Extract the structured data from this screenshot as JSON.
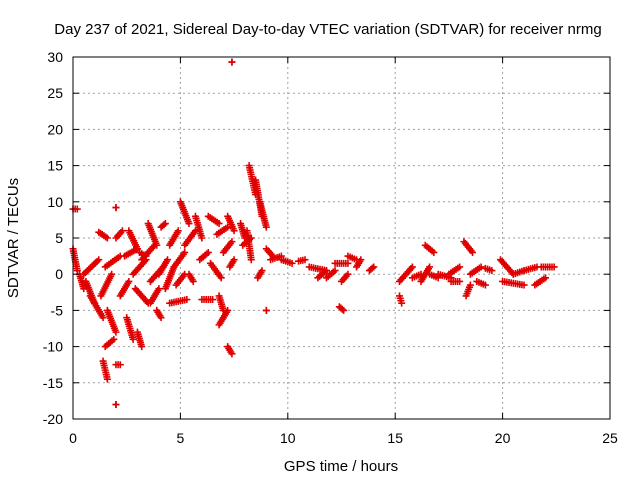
{
  "chart_data": {
    "type": "scatter",
    "title": "Day 237 of 2021, Sidereal Day-to-day VTEC variation (SDTVAR) for receiver nrmg",
    "xlabel": "GPS time / hours",
    "ylabel": "SDTVAR / TECUs",
    "xlim": [
      0,
      25
    ],
    "ylim": [
      -20,
      30
    ],
    "xticks": [
      "0",
      "5",
      "10",
      "15",
      "20",
      "25"
    ],
    "yticks": [
      "-20",
      "-15",
      "-10",
      "-5",
      "0",
      "5",
      "10",
      "15",
      "20",
      "25",
      "30"
    ],
    "grid": true,
    "marker": "+",
    "color": "#e00000",
    "segments": [
      [
        0.0,
        9.0,
        0.2,
        9.0
      ],
      [
        0.0,
        3.5,
        0.2,
        0.5
      ],
      [
        0.3,
        0.0,
        0.5,
        -2.0
      ],
      [
        0.5,
        0.0,
        1.2,
        2.0
      ],
      [
        0.6,
        -1.0,
        1.0,
        -4.0
      ],
      [
        0.8,
        -3.0,
        1.4,
        -6.0
      ],
      [
        1.2,
        5.8,
        1.6,
        5.0
      ],
      [
        1.3,
        -3.0,
        1.8,
        0.0
      ],
      [
        1.4,
        -12.0,
        1.6,
        -14.5
      ],
      [
        1.5,
        -10.0,
        1.9,
        -9.0
      ],
      [
        1.5,
        1.0,
        2.2,
        2.5
      ],
      [
        1.6,
        -5.0,
        2.0,
        -8.0
      ],
      [
        2.0,
        9.2,
        2.0,
        9.2
      ],
      [
        2.0,
        5.0,
        2.3,
        6.0
      ],
      [
        2.0,
        -12.5,
        2.2,
        -12.5
      ],
      [
        2.0,
        -18.0,
        2.0,
        -18.0
      ],
      [
        2.2,
        -3.0,
        2.6,
        -1.0
      ],
      [
        2.4,
        2.5,
        3.0,
        3.5
      ],
      [
        2.5,
        -6.0,
        2.8,
        -9.0
      ],
      [
        2.6,
        6.0,
        3.0,
        3.5
      ],
      [
        2.8,
        0.0,
        3.4,
        2.0
      ],
      [
        2.9,
        -2.0,
        3.5,
        -4.0
      ],
      [
        3.0,
        -8.0,
        3.2,
        -10.0
      ],
      [
        3.1,
        3.0,
        3.4,
        2.5
      ],
      [
        3.2,
        2.0,
        3.8,
        4.0
      ],
      [
        3.5,
        7.0,
        3.9,
        4.0
      ],
      [
        3.6,
        -1.0,
        4.2,
        1.0
      ],
      [
        3.6,
        -4.0,
        4.0,
        -2.0
      ],
      [
        3.9,
        -5.0,
        4.1,
        -6.0
      ],
      [
        4.0,
        0.0,
        4.4,
        2.0
      ],
      [
        4.1,
        6.5,
        4.3,
        7.0
      ],
      [
        4.3,
        -2.0,
        4.7,
        1.0
      ],
      [
        4.5,
        4.0,
        4.9,
        6.0
      ],
      [
        4.5,
        -4.0,
        5.3,
        -3.5
      ],
      [
        4.7,
        1.0,
        5.2,
        3.0
      ],
      [
        4.8,
        -1.5,
        5.2,
        0.0
      ],
      [
        5.0,
        10.0,
        5.4,
        7.0
      ],
      [
        5.2,
        4.0,
        5.7,
        6.0
      ],
      [
        5.4,
        0.0,
        5.6,
        -1.0
      ],
      [
        5.7,
        8.0,
        6.0,
        5.0
      ],
      [
        5.9,
        2.0,
        6.3,
        3.0
      ],
      [
        6.0,
        -3.5,
        6.5,
        -3.5
      ],
      [
        6.3,
        8.0,
        6.8,
        7.0
      ],
      [
        6.4,
        1.5,
        6.9,
        -0.5
      ],
      [
        6.7,
        5.5,
        7.2,
        6.5
      ],
      [
        6.8,
        -3.0,
        7.0,
        -5.0
      ],
      [
        6.8,
        -7.0,
        7.2,
        -5.0
      ],
      [
        7.0,
        3.0,
        7.4,
        4.5
      ],
      [
        7.2,
        8.0,
        7.5,
        6.0
      ],
      [
        7.2,
        -10.0,
        7.4,
        -11.0
      ],
      [
        7.3,
        1.0,
        7.5,
        2.0
      ],
      [
        7.4,
        29.3,
        7.4,
        29.3
      ],
      [
        7.8,
        7.0,
        8.0,
        5.0
      ],
      [
        7.9,
        4.0,
        8.3,
        5.0
      ],
      [
        8.1,
        6.0,
        8.3,
        2.0
      ],
      [
        8.2,
        15.0,
        8.5,
        11.0
      ],
      [
        8.5,
        13.0,
        8.8,
        8.0
      ],
      [
        8.7,
        10.0,
        9.0,
        6.5
      ],
      [
        8.6,
        -0.5,
        8.8,
        0.5
      ],
      [
        9.0,
        -5.0,
        9.0,
        -5.0
      ],
      [
        9.0,
        3.5,
        9.3,
        2.5
      ],
      [
        9.2,
        2.0,
        9.7,
        2.5
      ],
      [
        9.7,
        2.0,
        10.2,
        1.5
      ],
      [
        10.5,
        1.8,
        10.8,
        2.0
      ],
      [
        11.0,
        1.0,
        11.8,
        0.5
      ],
      [
        11.4,
        -0.5,
        11.8,
        0.5
      ],
      [
        11.8,
        -0.5,
        12.2,
        0.5
      ],
      [
        12.2,
        1.5,
        12.8,
        1.5
      ],
      [
        12.4,
        -4.5,
        12.6,
        -5.0
      ],
      [
        12.5,
        -1.0,
        12.8,
        0.0
      ],
      [
        12.8,
        2.5,
        13.2,
        2.0
      ],
      [
        13.2,
        1.0,
        13.4,
        2.0
      ],
      [
        13.8,
        0.5,
        14.0,
        1.0
      ],
      [
        15.2,
        -3.0,
        15.3,
        -4.0
      ],
      [
        15.2,
        -1.0,
        15.8,
        1.0
      ],
      [
        15.8,
        -0.5,
        16.2,
        0.0
      ],
      [
        16.2,
        -1.0,
        16.6,
        1.0
      ],
      [
        16.4,
        4.0,
        16.8,
        3.0
      ],
      [
        16.6,
        0.0,
        17.0,
        -0.5
      ],
      [
        17.0,
        0.0,
        17.6,
        -0.5
      ],
      [
        17.5,
        0.0,
        18.0,
        1.0
      ],
      [
        17.6,
        -1.0,
        18.0,
        -1.0
      ],
      [
        18.2,
        4.5,
        18.6,
        3.0
      ],
      [
        18.3,
        -3.0,
        18.5,
        -1.5
      ],
      [
        18.5,
        0.0,
        19.0,
        1.0
      ],
      [
        18.8,
        -1.0,
        19.2,
        -1.5
      ],
      [
        19.2,
        0.8,
        19.5,
        0.5
      ],
      [
        19.9,
        2.0,
        20.5,
        0.0
      ],
      [
        20.0,
        -1.0,
        21.0,
        -1.5
      ],
      [
        20.5,
        0.0,
        21.0,
        0.5
      ],
      [
        21.0,
        0.5,
        21.6,
        1.0
      ],
      [
        21.5,
        -1.5,
        22.0,
        -0.5
      ],
      [
        21.8,
        1.0,
        22.4,
        1.0
      ]
    ]
  }
}
